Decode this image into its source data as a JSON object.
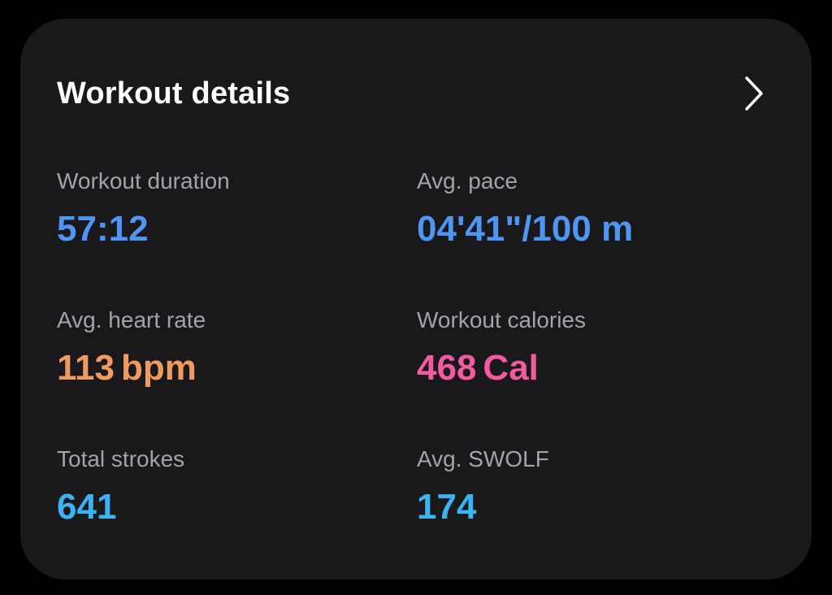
{
  "card": {
    "title": "Workout details",
    "more_icon": "chevron-right-icon"
  },
  "stats": {
    "duration": {
      "label": "Workout duration",
      "value": "57:12",
      "color": "#4f96f4"
    },
    "pace": {
      "label": "Avg. pace",
      "value": "04'41\"/100 m",
      "color": "#4f96f4"
    },
    "heart_rate": {
      "label": "Avg. heart rate",
      "value": "113",
      "unit": "bpm",
      "color": "#ef9a5e"
    },
    "calories": {
      "label": "Workout calories",
      "value": "468",
      "unit": "Cal",
      "color": "#f45aa0"
    },
    "strokes": {
      "label": "Total strokes",
      "value": "641",
      "color": "#3ab4f2"
    },
    "swolf": {
      "label": "Avg. SWOLF",
      "value": "174",
      "color": "#3ab4f2"
    }
  }
}
